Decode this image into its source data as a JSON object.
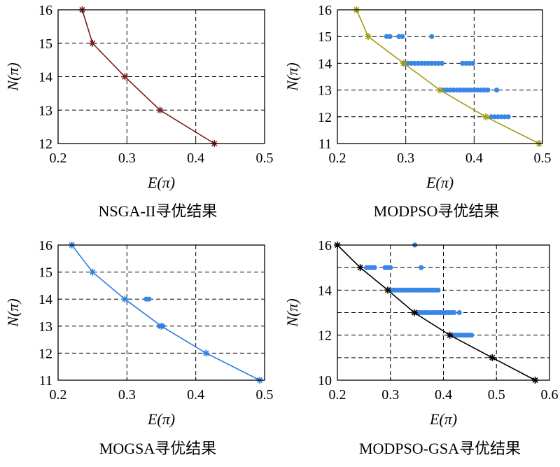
{
  "colors": {
    "nsga": "#7a1e1e",
    "modpso": "#a39b14",
    "mogsa": "#2a7fe0",
    "modpso_gsa": "#000000",
    "scatter": "#3a86e6"
  },
  "chart_data": [
    {
      "type": "line",
      "title": "NSGA-II寻优结果",
      "xlabel": "E(π)",
      "ylabel": "N(π)",
      "xlim": [
        0.2,
        0.5
      ],
      "ylim": [
        12,
        16
      ],
      "xticks": [
        "0.2",
        "0.3",
        "0.4",
        "0.5"
      ],
      "yticks": [
        "12",
        "13",
        "14",
        "15",
        "16"
      ],
      "grid": true,
      "series": [
        {
          "name": "front",
          "color_key": "nsga",
          "marker": "*",
          "x": [
            0.235,
            0.25,
            0.297,
            0.348,
            0.427
          ],
          "y": [
            16,
            15,
            14,
            13,
            12
          ]
        }
      ],
      "scatter": []
    },
    {
      "type": "line",
      "title": "MODPSO寻优结果",
      "xlabel": "E(π)",
      "ylabel": "N(π)",
      "xlim": [
        0.2,
        0.5
      ],
      "ylim": [
        11,
        16
      ],
      "xticks": [
        "0.2",
        "0.3",
        "0.4",
        "0.5"
      ],
      "yticks": [
        "11",
        "12",
        "13",
        "14",
        "15",
        "16"
      ],
      "grid": true,
      "series": [
        {
          "name": "front",
          "color_key": "modpso",
          "marker": "*",
          "x": [
            0.228,
            0.245,
            0.297,
            0.35,
            0.417,
            0.495
          ],
          "y": [
            16,
            15,
            14,
            13,
            12,
            11
          ]
        }
      ],
      "scatter": [
        {
          "y": 15,
          "x": [
            0.272,
            0.277,
            0.29,
            0.295,
            0.338
          ]
        },
        {
          "y": 14,
          "x": [
            0.297,
            0.303,
            0.308,
            0.313,
            0.318,
            0.323,
            0.328,
            0.333,
            0.338,
            0.343,
            0.348,
            0.353,
            0.383,
            0.388,
            0.393,
            0.398
          ]
        },
        {
          "y": 13,
          "x": [
            0.355,
            0.36,
            0.365,
            0.37,
            0.375,
            0.38,
            0.385,
            0.39,
            0.395,
            0.4,
            0.405,
            0.41,
            0.415,
            0.42,
            0.433
          ]
        },
        {
          "y": 12,
          "x": [
            0.425,
            0.43,
            0.435,
            0.44,
            0.445,
            0.45
          ]
        }
      ]
    },
    {
      "type": "line",
      "title": "MOGSA寻优结果",
      "xlabel": "E(π)",
      "ylabel": "N(π)",
      "xlim": [
        0.2,
        0.5
      ],
      "ylim": [
        11,
        16
      ],
      "xticks": [
        "0.2",
        "0.3",
        "0.4",
        "0.5"
      ],
      "yticks": [
        "11",
        "12",
        "13",
        "14",
        "15",
        "16"
      ],
      "grid": true,
      "series": [
        {
          "name": "front",
          "color_key": "mogsa",
          "marker": "*",
          "x": [
            0.22,
            0.25,
            0.297,
            0.35,
            0.415,
            0.493
          ],
          "y": [
            16,
            15,
            14,
            13,
            12,
            11
          ]
        }
      ],
      "scatter": [
        {
          "y": 14,
          "x": [
            0.328,
            0.332
          ]
        },
        {
          "y": 13,
          "x": [
            0.347,
            0.352
          ]
        }
      ]
    },
    {
      "type": "line",
      "title": "MODPSO-GSA寻优结果",
      "xlabel": "E(π)",
      "ylabel": "N(π)",
      "xlim": [
        0.2,
        0.6
      ],
      "ylim": [
        10,
        16
      ],
      "xticks": [
        "0.2",
        "0.3",
        "0.4",
        "0.5",
        "0.6"
      ],
      "yticks": [
        "10",
        "12",
        "14",
        "16"
      ],
      "ygrid": [
        10,
        11,
        12,
        13,
        14,
        15,
        16
      ],
      "grid": true,
      "series": [
        {
          "name": "front",
          "color_key": "modpso_gsa",
          "marker": "*",
          "x": [
            0.2,
            0.243,
            0.295,
            0.345,
            0.412,
            0.492,
            0.573
          ],
          "y": [
            16,
            15,
            14,
            13,
            12,
            11,
            10
          ]
        }
      ],
      "scatter": [
        {
          "y": 16,
          "x": [
            0.346
          ]
        },
        {
          "y": 15,
          "x": [
            0.255,
            0.26,
            0.265,
            0.27,
            0.29,
            0.295,
            0.3,
            0.358
          ]
        },
        {
          "y": 14,
          "x": [
            0.3,
            0.305,
            0.31,
            0.315,
            0.32,
            0.325,
            0.33,
            0.335,
            0.34,
            0.345,
            0.35,
            0.355,
            0.36,
            0.365,
            0.37,
            0.375,
            0.38,
            0.385,
            0.39
          ]
        },
        {
          "y": 13,
          "x": [
            0.35,
            0.355,
            0.36,
            0.365,
            0.37,
            0.375,
            0.38,
            0.385,
            0.39,
            0.395,
            0.4,
            0.405,
            0.41,
            0.415,
            0.42,
            0.43
          ]
        },
        {
          "y": 12,
          "x": [
            0.418,
            0.423,
            0.428,
            0.433,
            0.438,
            0.443,
            0.448,
            0.453
          ]
        }
      ]
    }
  ]
}
